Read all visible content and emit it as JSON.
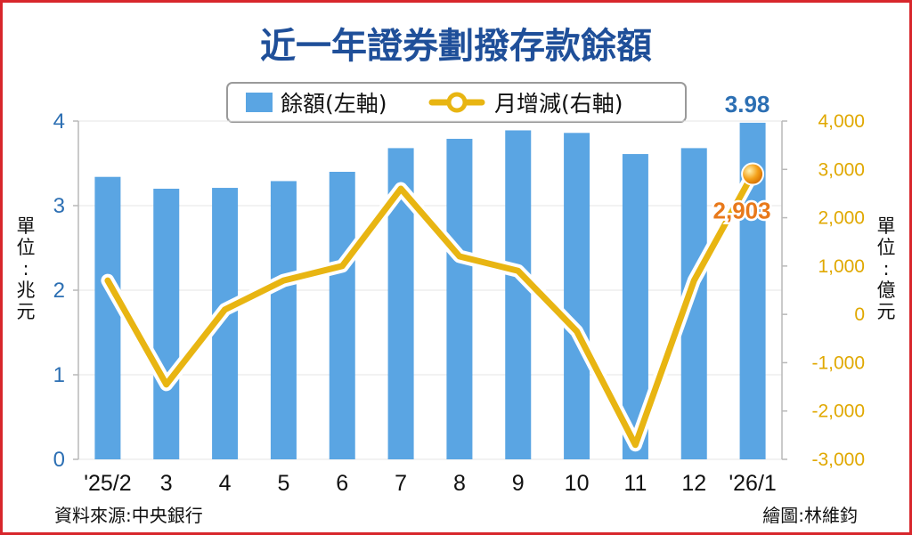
{
  "chart_data": {
    "type": "bar+line",
    "title": "近一年證券劃撥存款餘額",
    "categories": [
      "'25/2",
      "3",
      "4",
      "5",
      "6",
      "7",
      "8",
      "9",
      "10",
      "11",
      "12",
      "'26/1"
    ],
    "series": [
      {
        "name": "餘額(左軸)",
        "type": "bar",
        "axis": "left",
        "color": "#5aa5e3",
        "values": [
          3.34,
          3.2,
          3.21,
          3.29,
          3.4,
          3.68,
          3.79,
          3.89,
          3.86,
          3.61,
          3.68,
          3.98
        ]
      },
      {
        "name": "月增減(右軸)",
        "type": "line",
        "axis": "right",
        "color": "#e8b512",
        "values": [
          700,
          -1450,
          100,
          700,
          1000,
          2600,
          1200,
          900,
          -350,
          -2700,
          700,
          2903
        ]
      }
    ],
    "left_axis": {
      "label": "單位:兆元",
      "ylim": [
        0,
        4
      ],
      "ticks": [
        "0",
        "1",
        "2",
        "3",
        "4"
      ]
    },
    "right_axis": {
      "label": "單位:億元",
      "ylim": [
        -3000,
        4000
      ],
      "ticks": [
        "-3,000",
        "-2,000",
        "-1,000",
        "0",
        "1,000",
        "2,000",
        "3,000",
        "4,000"
      ]
    },
    "data_labels": {
      "last_bar": "3.98",
      "last_point": "2,903"
    },
    "legend": {
      "position": "top-center"
    },
    "source": "資料來源:中央銀行",
    "credit": "繪圖:林維鈞"
  },
  "colors": {
    "frame": "#d8262c",
    "title": "#1f4f99",
    "bar": "#5aa5e3",
    "line": "#e8b512",
    "point_label": "#e8791b"
  }
}
